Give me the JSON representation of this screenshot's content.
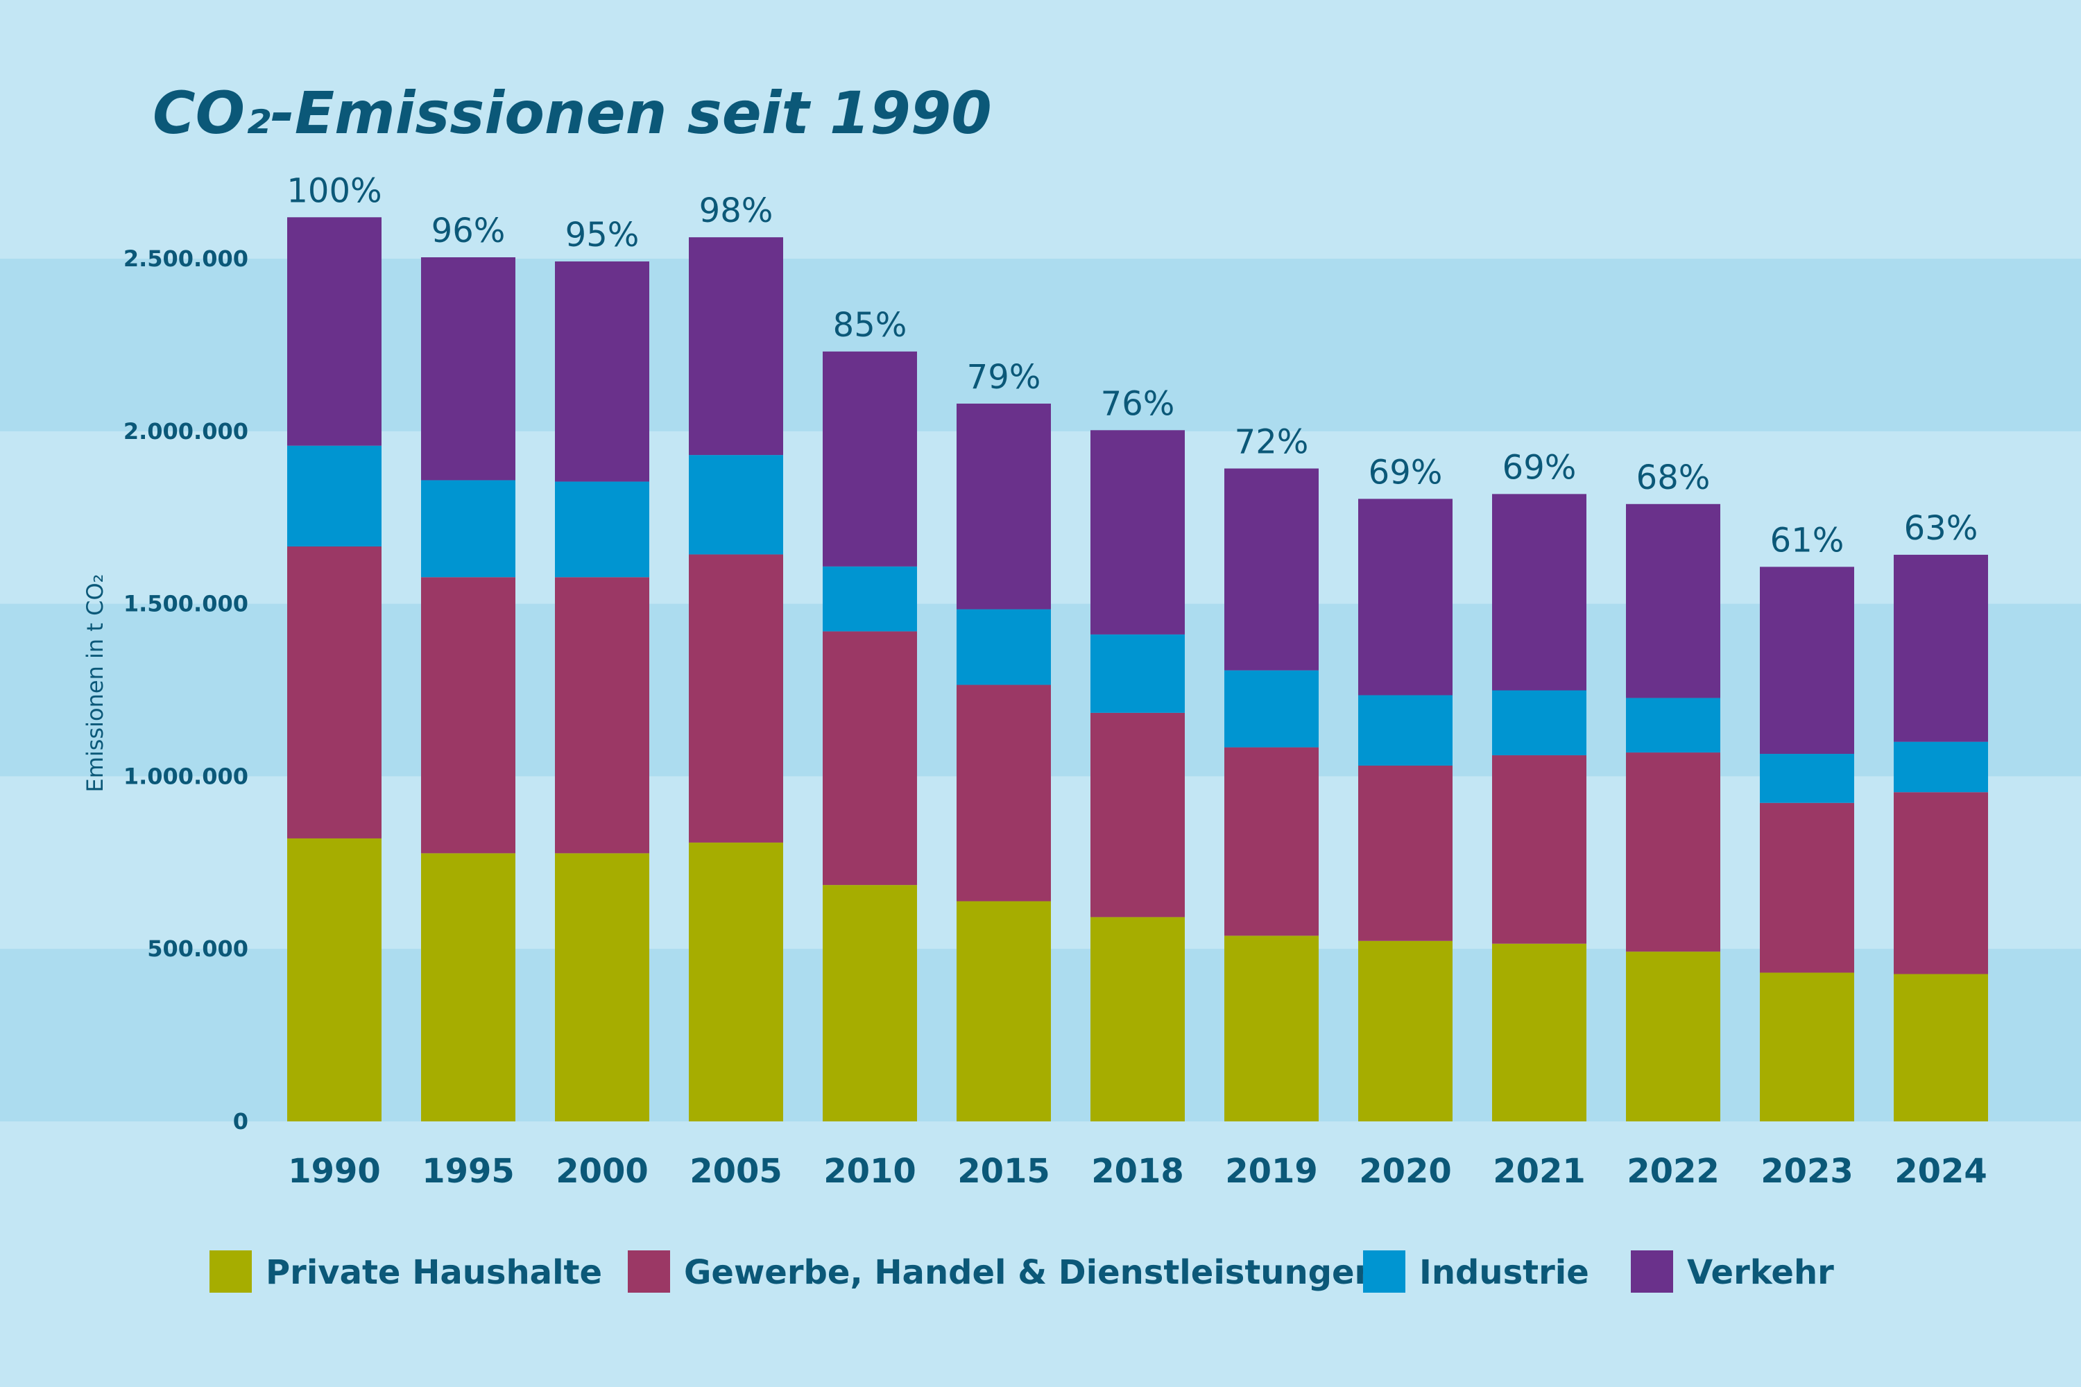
{
  "chart_data": {
    "type": "bar",
    "stacked": true,
    "title": "CO₂-Emissionen seit 1990",
    "ylabel": "Emissionen in t CO₂",
    "xlabel": "",
    "ylim": [
      0,
      2600000
    ],
    "yticks": [
      0,
      500000,
      1000000,
      1500000,
      2000000,
      2500000
    ],
    "ytick_labels": [
      "0",
      "500.000",
      "1.000.000",
      "1.500.000",
      "2.000.000",
      "2.500.000"
    ],
    "grid": "alternating horizontal bands",
    "legend_position": "bottom",
    "categories": [
      "1990",
      "1995",
      "2000",
      "2005",
      "2010",
      "2015",
      "2018",
      "2019",
      "2020",
      "2021",
      "2022",
      "2023",
      "2024"
    ],
    "percent_labels": [
      "100%",
      "96%",
      "95%",
      "98%",
      "85%",
      "79%",
      "76%",
      "72%",
      "69%",
      "69%",
      "68%",
      "61%",
      "63%"
    ],
    "series": [
      {
        "name": "Private Haushalte",
        "color": "#a6ad00",
        "values": [
          820000,
          777000,
          777000,
          808000,
          685000,
          638000,
          592000,
          538000,
          523000,
          515000,
          492000,
          431000,
          427000
        ]
      },
      {
        "name": "Gewerbe, Handel & Dienstleistungen",
        "color": "#9b3865",
        "values": [
          846000,
          800000,
          800000,
          835000,
          735000,
          627000,
          592000,
          546000,
          508000,
          546000,
          577000,
          492000,
          527000
        ]
      },
      {
        "name": "Industrie",
        "color": "#0095d1",
        "values": [
          292000,
          281000,
          277000,
          288000,
          188000,
          219000,
          227000,
          223000,
          204000,
          188000,
          158000,
          142000,
          146000
        ]
      },
      {
        "name": "Verkehr",
        "color": "#6a318b",
        "values": [
          662000,
          646000,
          638000,
          631000,
          623000,
          596000,
          592000,
          585000,
          569000,
          569000,
          562000,
          542000,
          542000
        ]
      }
    ]
  },
  "colors": {
    "background": "#c3e6f4",
    "band": "#acdcef",
    "text": "#0b5878"
  }
}
